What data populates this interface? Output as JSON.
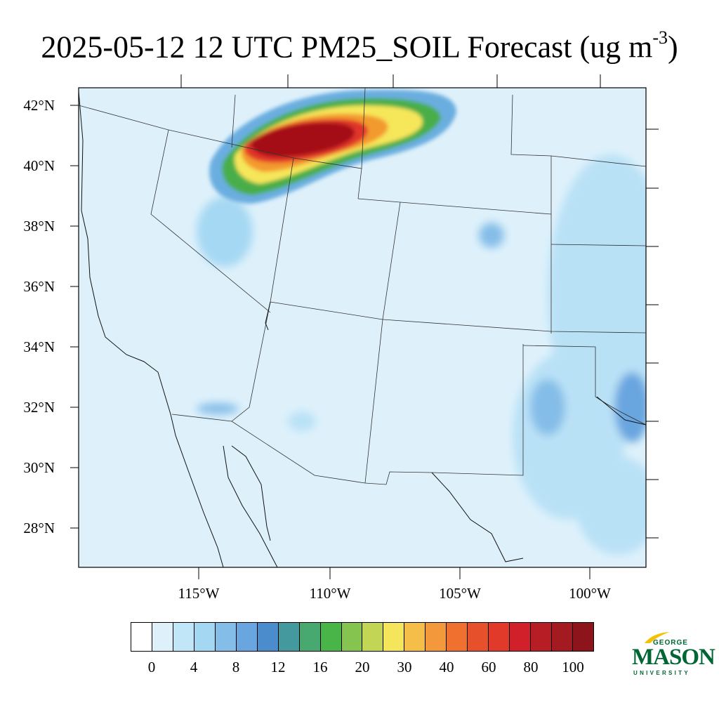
{
  "title": {
    "main": "2025-05-12 12 UTC PM25_SOIL Forecast (ug m",
    "superscript": "-3",
    "closing": ")"
  },
  "map": {
    "lat_labels": [
      "42°N",
      "40°N",
      "38°N",
      "36°N",
      "34°N",
      "32°N",
      "30°N",
      "28°N"
    ],
    "lon_labels": [
      "115°W",
      "110°W",
      "105°W",
      "100°W"
    ],
    "background_color": "#def1fb",
    "hotspot_colors": [
      "#a5d8f3",
      "#6aaee0",
      "#3e96a6",
      "#49ae4a",
      "#f6e65a",
      "#f39a2d",
      "#e0362c",
      "#a50f15"
    ]
  },
  "colorbar": {
    "colors": [
      "#ffffff",
      "#def1fb",
      "#c1e6f8",
      "#a3d7f2",
      "#84bde8",
      "#69a5df",
      "#4a8ccc",
      "#44999f",
      "#47a870",
      "#49b549",
      "#86c450",
      "#c3d555",
      "#f4e55a",
      "#f5be48",
      "#f3983b",
      "#f0702f",
      "#e6502a",
      "#e13a2a",
      "#d12029",
      "#b71d24",
      "#a31a20",
      "#8d141b"
    ],
    "labels": [
      "0",
      "4",
      "8",
      "12",
      "16",
      "20",
      "30",
      "40",
      "60",
      "80",
      "100"
    ]
  },
  "logo": {
    "line1": "GEORGE",
    "line2": "MASON",
    "line3": "UNIVERSITY",
    "color": "#006633",
    "accent": "#f2c100"
  }
}
